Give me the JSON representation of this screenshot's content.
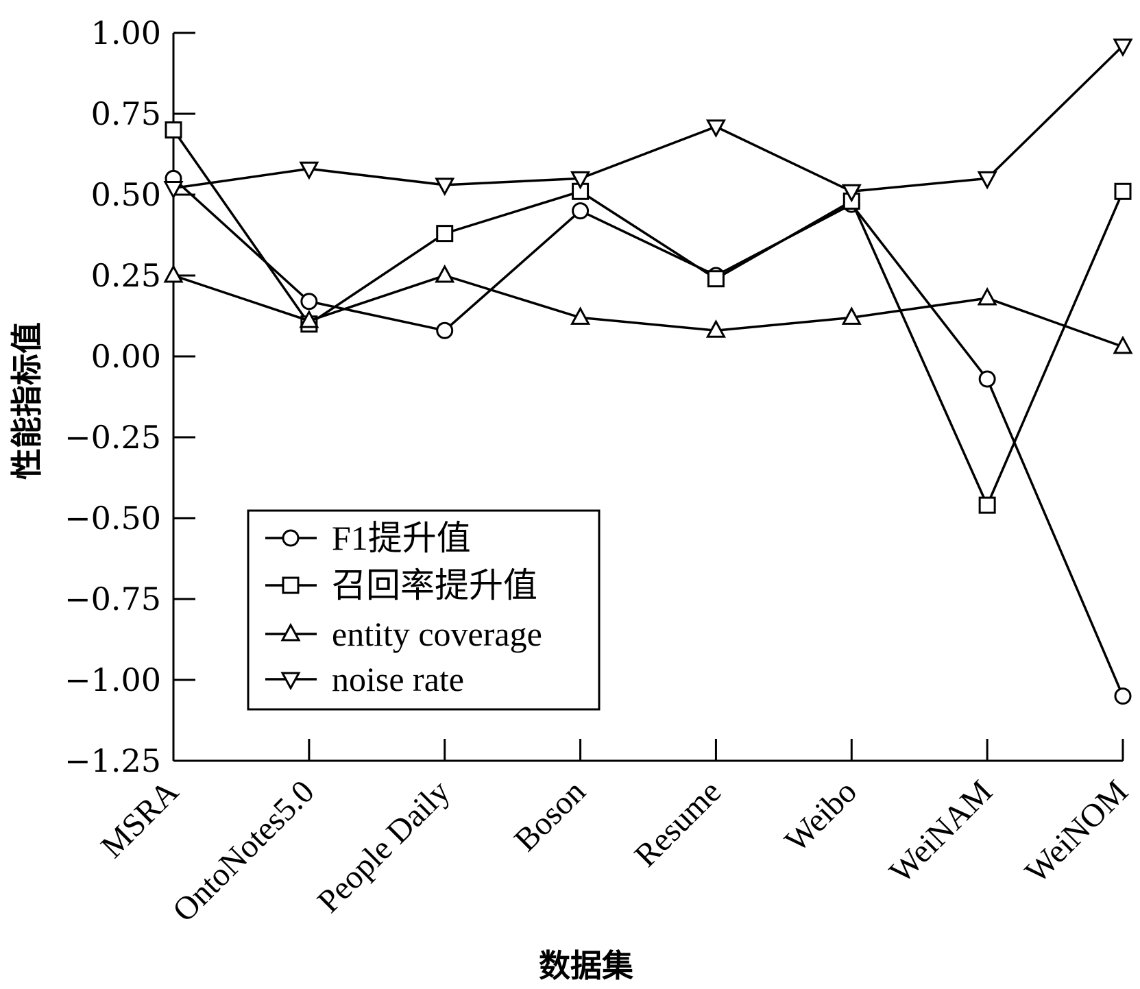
{
  "chart_data": {
    "type": "line",
    "title": "",
    "xlabel": "数据集",
    "ylabel": "性能指标值",
    "categories": [
      "MSRA",
      "OntoNotes5.0",
      "People Daily",
      "Boson",
      "Resume",
      "Weibo",
      "WeiNAM",
      "WeiNOM"
    ],
    "ylim": [
      -1.25,
      1.0
    ],
    "yticks": [
      "1.00",
      "0.75",
      "0.50",
      "0.25",
      "0.00",
      "−0.25",
      "−0.50",
      "−0.75",
      "−1.00",
      "−1.25"
    ],
    "ytick_values": [
      1.0,
      0.75,
      0.5,
      0.25,
      0.0,
      -0.25,
      -0.5,
      -0.75,
      -1.0,
      -1.25
    ],
    "grid": false,
    "legend_position": "lower-left",
    "series": [
      {
        "name": "F1提升值",
        "marker": "circle",
        "values": [
          0.55,
          0.17,
          0.08,
          0.45,
          0.25,
          0.47,
          -0.07,
          -1.05
        ]
      },
      {
        "name": "召回率提升值",
        "marker": "square",
        "values": [
          0.7,
          0.1,
          0.38,
          0.51,
          0.24,
          0.48,
          -0.46,
          0.51
        ]
      },
      {
        "name": "entity coverage",
        "marker": "triangle-up",
        "values": [
          0.25,
          0.11,
          0.25,
          0.12,
          0.08,
          0.12,
          0.18,
          0.03
        ]
      },
      {
        "name": "noise rate",
        "marker": "triangle-down",
        "values": [
          0.52,
          0.58,
          0.53,
          0.55,
          0.71,
          0.51,
          0.55,
          0.96
        ]
      }
    ]
  }
}
